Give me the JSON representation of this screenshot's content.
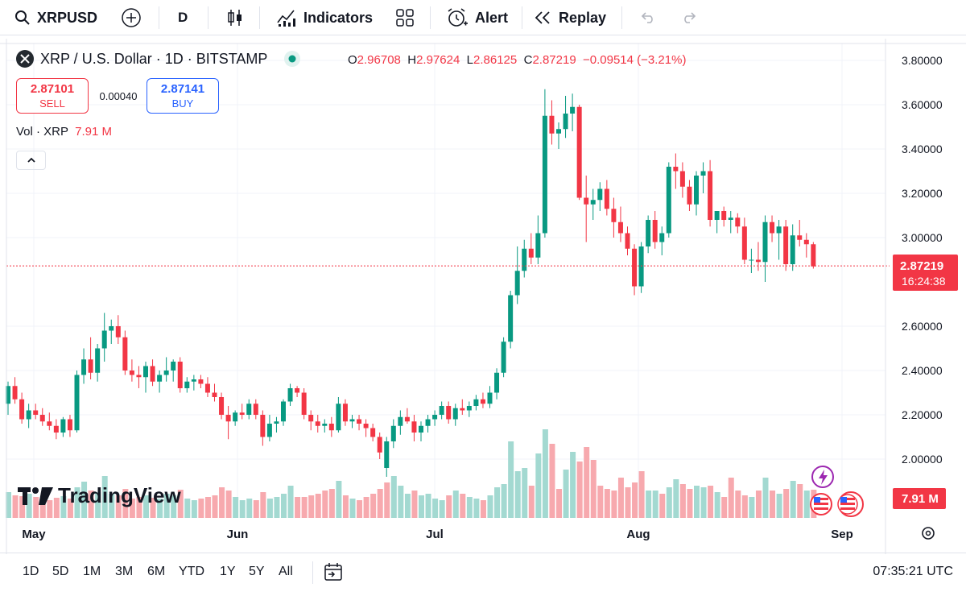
{
  "toolbar": {
    "symbol": "XRPUSD",
    "interval": "D",
    "indicators_label": "Indicators",
    "alert_label": "Alert",
    "replay_label": "Replay"
  },
  "legend": {
    "title": "XRP / U.S. Dollar · 1D · BITSTAMP",
    "open_key": "O",
    "open": "2.96708",
    "high_key": "H",
    "high": "2.97624",
    "low_key": "L",
    "low": "2.86125",
    "close_key": "C",
    "close": "2.87219",
    "change": "−0.09514 (−3.21%)"
  },
  "trade": {
    "sell_price": "2.87101",
    "sell_label": "SELL",
    "spread": "0.00040",
    "buy_price": "2.87141",
    "buy_label": "BUY"
  },
  "volume": {
    "label": "Vol · XRP",
    "value": "7.91 M"
  },
  "collapse_icon": "chevron-up-icon",
  "price_axis": {
    "ticks": [
      "3.80000",
      "3.60000",
      "3.40000",
      "3.20000",
      "3.00000",
      "2.60000",
      "2.40000",
      "2.20000",
      "2.00000"
    ],
    "last_price": "2.87219",
    "countdown": "16:24:38",
    "volume_tag": "7.91 M"
  },
  "time_axis": {
    "ticks": [
      "May",
      "Jun",
      "Jul",
      "Aug",
      "Sep"
    ]
  },
  "brand": "TradingView",
  "ranges": [
    "1D",
    "5D",
    "1M",
    "3M",
    "6M",
    "YTD",
    "1Y",
    "5Y",
    "All"
  ],
  "clock": "07:35:21 UTC",
  "colors": {
    "up": "#089981",
    "down": "#f23645",
    "vol_up": "#a3d9d1",
    "vol_down": "#f7a9ae",
    "accent": "#2962ff"
  },
  "chart_data": {
    "type": "candlestick",
    "symbol": "XRP / U.S. Dollar",
    "interval": "1D",
    "ylim": [
      1.8,
      3.9
    ],
    "x_ticks": [
      "May",
      "Jun",
      "Jul",
      "Aug",
      "Sep"
    ],
    "candles": [
      [
        2.25,
        2.35,
        2.2,
        2.33
      ],
      [
        2.33,
        2.37,
        2.25,
        2.27
      ],
      [
        2.27,
        2.3,
        2.16,
        2.18
      ],
      [
        2.18,
        2.25,
        2.14,
        2.22
      ],
      [
        2.22,
        2.25,
        2.18,
        2.2
      ],
      [
        2.2,
        2.23,
        2.15,
        2.17
      ],
      [
        2.17,
        2.21,
        2.13,
        2.15
      ],
      [
        2.15,
        2.18,
        2.09,
        2.12
      ],
      [
        2.12,
        2.19,
        2.1,
        2.18
      ],
      [
        2.18,
        2.2,
        2.1,
        2.13
      ],
      [
        2.13,
        2.4,
        2.12,
        2.38
      ],
      [
        2.38,
        2.5,
        2.34,
        2.45
      ],
      [
        2.45,
        2.55,
        2.36,
        2.39
      ],
      [
        2.39,
        2.52,
        2.35,
        2.5
      ],
      [
        2.5,
        2.66,
        2.44,
        2.58
      ],
      [
        2.58,
        2.63,
        2.52,
        2.6
      ],
      [
        2.6,
        2.65,
        2.52,
        2.55
      ],
      [
        2.55,
        2.58,
        2.38,
        2.4
      ],
      [
        2.4,
        2.45,
        2.35,
        2.38
      ],
      [
        2.38,
        2.42,
        2.32,
        2.37
      ],
      [
        2.37,
        2.44,
        2.3,
        2.42
      ],
      [
        2.42,
        2.45,
        2.33,
        2.35
      ],
      [
        2.35,
        2.4,
        2.3,
        2.38
      ],
      [
        2.38,
        2.46,
        2.35,
        2.4
      ],
      [
        2.4,
        2.45,
        2.35,
        2.44
      ],
      [
        2.44,
        2.46,
        2.3,
        2.32
      ],
      [
        2.32,
        2.37,
        2.3,
        2.35
      ],
      [
        2.35,
        2.38,
        2.31,
        2.36
      ],
      [
        2.36,
        2.38,
        2.32,
        2.34
      ],
      [
        2.34,
        2.37,
        2.28,
        2.3
      ],
      [
        2.3,
        2.34,
        2.26,
        2.28
      ],
      [
        2.28,
        2.3,
        2.18,
        2.2
      ],
      [
        2.2,
        2.24,
        2.09,
        2.17
      ],
      [
        2.17,
        2.22,
        2.15,
        2.21
      ],
      [
        2.21,
        2.25,
        2.18,
        2.2
      ],
      [
        2.2,
        2.27,
        2.18,
        2.25
      ],
      [
        2.25,
        2.27,
        2.18,
        2.2
      ],
      [
        2.2,
        2.22,
        2.06,
        2.1
      ],
      [
        2.1,
        2.2,
        2.08,
        2.16
      ],
      [
        2.16,
        2.19,
        2.12,
        2.17
      ],
      [
        2.17,
        2.27,
        2.15,
        2.26
      ],
      [
        2.26,
        2.34,
        2.24,
        2.32
      ],
      [
        2.32,
        2.33,
        2.28,
        2.3
      ],
      [
        2.3,
        2.32,
        2.18,
        2.2
      ],
      [
        2.2,
        2.22,
        2.13,
        2.17
      ],
      [
        2.17,
        2.2,
        2.12,
        2.15
      ],
      [
        2.15,
        2.18,
        2.12,
        2.16
      ],
      [
        2.16,
        2.19,
        2.1,
        2.13
      ],
      [
        2.13,
        2.28,
        2.12,
        2.25
      ],
      [
        2.25,
        2.27,
        2.15,
        2.17
      ],
      [
        2.17,
        2.2,
        2.14,
        2.18
      ],
      [
        2.18,
        2.2,
        2.13,
        2.16
      ],
      [
        2.16,
        2.18,
        2.1,
        2.14
      ],
      [
        2.14,
        2.16,
        2.08,
        2.1
      ],
      [
        2.1,
        2.12,
        2.0,
        2.03
      ],
      [
        1.96,
        2.1,
        1.92,
        2.08
      ],
      [
        2.08,
        2.18,
        2.05,
        2.15
      ],
      [
        2.15,
        2.22,
        2.11,
        2.19
      ],
      [
        2.19,
        2.23,
        2.16,
        2.17
      ],
      [
        2.17,
        2.2,
        2.08,
        2.12
      ],
      [
        2.12,
        2.17,
        2.08,
        2.15
      ],
      [
        2.15,
        2.2,
        2.12,
        2.18
      ],
      [
        2.18,
        2.22,
        2.15,
        2.2
      ],
      [
        2.2,
        2.26,
        2.18,
        2.24
      ],
      [
        2.24,
        2.26,
        2.16,
        2.18
      ],
      [
        2.18,
        2.25,
        2.15,
        2.23
      ],
      [
        2.23,
        2.27,
        2.2,
        2.22
      ],
      [
        2.22,
        2.26,
        2.19,
        2.24
      ],
      [
        2.24,
        2.29,
        2.22,
        2.27
      ],
      [
        2.27,
        2.3,
        2.23,
        2.25
      ],
      [
        2.25,
        2.33,
        2.23,
        2.3
      ],
      [
        2.3,
        2.41,
        2.27,
        2.39
      ],
      [
        2.39,
        2.55,
        2.37,
        2.53
      ],
      [
        2.53,
        2.76,
        2.5,
        2.74
      ],
      [
        2.74,
        2.96,
        2.7,
        2.85
      ],
      [
        2.85,
        2.99,
        2.82,
        2.95
      ],
      [
        2.95,
        3.02,
        2.88,
        2.91
      ],
      [
        2.91,
        3.1,
        2.88,
        3.02
      ],
      [
        3.02,
        3.67,
        3.0,
        3.55
      ],
      [
        3.55,
        3.62,
        3.42,
        3.47
      ],
      [
        3.47,
        3.52,
        3.4,
        3.49
      ],
      [
        3.49,
        3.64,
        3.45,
        3.56
      ],
      [
        3.56,
        3.65,
        3.48,
        3.59
      ],
      [
        3.59,
        3.6,
        3.17,
        3.18
      ],
      [
        3.18,
        3.28,
        2.98,
        3.15
      ],
      [
        3.15,
        3.22,
        3.08,
        3.17
      ],
      [
        3.17,
        3.25,
        3.12,
        3.22
      ],
      [
        3.22,
        3.26,
        3.1,
        3.13
      ],
      [
        3.13,
        3.18,
        3.0,
        3.07
      ],
      [
        3.07,
        3.14,
        2.98,
        3.02
      ],
      [
        3.02,
        3.05,
        2.92,
        2.95
      ],
      [
        2.95,
        2.97,
        2.74,
        2.78
      ],
      [
        2.78,
        2.98,
        2.75,
        2.96
      ],
      [
        2.96,
        3.1,
        2.93,
        3.08
      ],
      [
        3.08,
        3.12,
        2.95,
        2.98
      ],
      [
        2.98,
        3.05,
        2.92,
        3.02
      ],
      [
        3.02,
        3.34,
        3.0,
        3.32
      ],
      [
        3.32,
        3.38,
        3.22,
        3.3
      ],
      [
        3.3,
        3.34,
        3.18,
        3.23
      ],
      [
        3.23,
        3.26,
        3.12,
        3.15
      ],
      [
        3.15,
        3.3,
        3.1,
        3.28
      ],
      [
        3.28,
        3.34,
        3.2,
        3.3
      ],
      [
        3.3,
        3.35,
        3.05,
        3.08
      ],
      [
        3.08,
        3.12,
        3.02,
        3.12
      ],
      [
        3.12,
        3.14,
        3.05,
        3.08
      ],
      [
        3.08,
        3.12,
        3.02,
        3.09
      ],
      [
        3.09,
        3.11,
        3.02,
        3.05
      ],
      [
        3.05,
        3.09,
        2.88,
        2.9
      ],
      [
        2.9,
        2.95,
        2.84,
        2.9
      ],
      [
        2.9,
        2.98,
        2.85,
        2.89
      ],
      [
        2.89,
        3.1,
        2.8,
        3.07
      ],
      [
        3.07,
        3.1,
        2.98,
        3.02
      ],
      [
        3.02,
        3.08,
        2.9,
        3.05
      ],
      [
        3.05,
        3.08,
        2.85,
        2.88
      ],
      [
        2.88,
        3.06,
        2.85,
        3.01
      ],
      [
        3.01,
        3.08,
        2.96,
        2.99
      ],
      [
        2.99,
        3.02,
        2.91,
        2.97
      ],
      [
        2.97,
        2.98,
        2.86,
        2.87
      ]
    ],
    "volumes": [
      [
        32,
        "up"
      ],
      [
        28,
        "down"
      ],
      [
        27,
        "down"
      ],
      [
        30,
        "up"
      ],
      [
        26,
        "down"
      ],
      [
        24,
        "down"
      ],
      [
        22,
        "down"
      ],
      [
        25,
        "down"
      ],
      [
        27,
        "up"
      ],
      [
        24,
        "down"
      ],
      [
        38,
        "up"
      ],
      [
        45,
        "up"
      ],
      [
        34,
        "down"
      ],
      [
        32,
        "up"
      ],
      [
        52,
        "up"
      ],
      [
        30,
        "up"
      ],
      [
        28,
        "down"
      ],
      [
        36,
        "down"
      ],
      [
        24,
        "down"
      ],
      [
        26,
        "down"
      ],
      [
        28,
        "up"
      ],
      [
        25,
        "down"
      ],
      [
        24,
        "up"
      ],
      [
        30,
        "up"
      ],
      [
        28,
        "up"
      ],
      [
        35,
        "down"
      ],
      [
        24,
        "up"
      ],
      [
        22,
        "up"
      ],
      [
        24,
        "down"
      ],
      [
        26,
        "down"
      ],
      [
        28,
        "down"
      ],
      [
        38,
        "down"
      ],
      [
        34,
        "down"
      ],
      [
        26,
        "up"
      ],
      [
        22,
        "up"
      ],
      [
        24,
        "up"
      ],
      [
        22,
        "down"
      ],
      [
        32,
        "down"
      ],
      [
        24,
        "up"
      ],
      [
        26,
        "up"
      ],
      [
        30,
        "up"
      ],
      [
        40,
        "up"
      ],
      [
        26,
        "down"
      ],
      [
        26,
        "down"
      ],
      [
        28,
        "down"
      ],
      [
        30,
        "down"
      ],
      [
        34,
        "down"
      ],
      [
        36,
        "down"
      ],
      [
        46,
        "up"
      ],
      [
        28,
        "down"
      ],
      [
        24,
        "up"
      ],
      [
        22,
        "down"
      ],
      [
        26,
        "down"
      ],
      [
        30,
        "down"
      ],
      [
        36,
        "down"
      ],
      [
        44,
        "down"
      ],
      [
        52,
        "up"
      ],
      [
        40,
        "up"
      ],
      [
        30,
        "up"
      ],
      [
        34,
        "down"
      ],
      [
        28,
        "up"
      ],
      [
        30,
        "up"
      ],
      [
        24,
        "up"
      ],
      [
        22,
        "up"
      ],
      [
        28,
        "down"
      ],
      [
        34,
        "up"
      ],
      [
        30,
        "down"
      ],
      [
        26,
        "up"
      ],
      [
        24,
        "up"
      ],
      [
        22,
        "down"
      ],
      [
        28,
        "up"
      ],
      [
        38,
        "up"
      ],
      [
        42,
        "up"
      ],
      [
        95,
        "up"
      ],
      [
        58,
        "up"
      ],
      [
        62,
        "up"
      ],
      [
        40,
        "down"
      ],
      [
        80,
        "up"
      ],
      [
        110,
        "up"
      ],
      [
        92,
        "down"
      ],
      [
        36,
        "down"
      ],
      [
        60,
        "up"
      ],
      [
        82,
        "up"
      ],
      [
        70,
        "down"
      ],
      [
        88,
        "down"
      ],
      [
        72,
        "down"
      ],
      [
        40,
        "down"
      ],
      [
        36,
        "down"
      ],
      [
        34,
        "down"
      ],
      [
        50,
        "down"
      ],
      [
        38,
        "down"
      ],
      [
        44,
        "down"
      ],
      [
        58,
        "down"
      ],
      [
        34,
        "up"
      ],
      [
        34,
        "up"
      ],
      [
        30,
        "down"
      ],
      [
        38,
        "up"
      ],
      [
        48,
        "up"
      ],
      [
        42,
        "down"
      ],
      [
        36,
        "down"
      ],
      [
        40,
        "up"
      ],
      [
        38,
        "up"
      ],
      [
        40,
        "down"
      ],
      [
        32,
        "up"
      ],
      [
        26,
        "down"
      ],
      [
        50,
        "down"
      ],
      [
        34,
        "down"
      ],
      [
        28,
        "down"
      ],
      [
        26,
        "up"
      ],
      [
        34,
        "down"
      ],
      [
        50,
        "up"
      ],
      [
        34,
        "down"
      ],
      [
        30,
        "up"
      ],
      [
        36,
        "down"
      ],
      [
        46,
        "up"
      ],
      [
        42,
        "down"
      ],
      [
        34,
        "up"
      ],
      [
        35,
        "down"
      ]
    ]
  }
}
